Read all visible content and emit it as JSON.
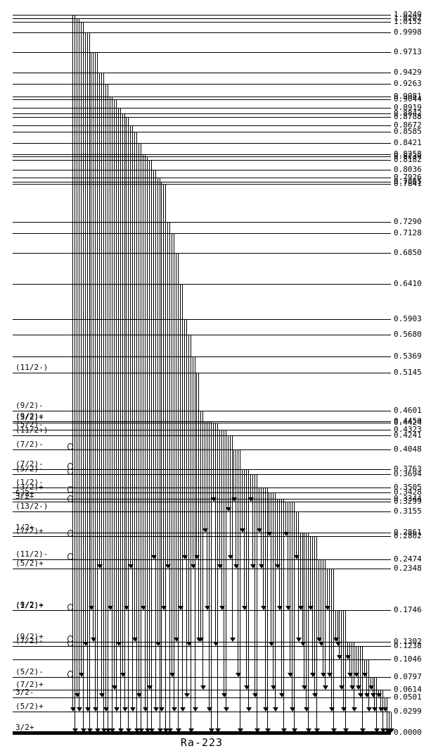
{
  "nuclide": "Ra-223",
  "energy_unit": "MeV",
  "colors": {
    "line": "#000000",
    "background": "#ffffff"
  },
  "levels": [
    {
      "e": 0.0,
      "el": "0.0000",
      "spin": "3/2+",
      "ground": true
    },
    {
      "e": 0.0299,
      "el": "0.0299",
      "spin": "(5/2)+"
    },
    {
      "e": 0.0501,
      "el": "0.0501",
      "spin": "3/2-"
    },
    {
      "e": 0.0614,
      "el": "0.0614",
      "spin": "(7/2)+"
    },
    {
      "e": 0.0797,
      "el": "0.0797",
      "spin": "(5/2)-",
      "m": true
    },
    {
      "e": 0.1046,
      "el": "0.1046",
      "spin": ""
    },
    {
      "e": 0.1238,
      "el": "0.1238",
      "spin": "(7/2)-",
      "m": true
    },
    {
      "e": 0.1302,
      "el": "0.1302",
      "spin": "(9/2)+",
      "m": true
    },
    {
      "e": 0.1746,
      "el": "0.1746",
      "spin": "(9/2)+",
      "spin2": "(1/2)+",
      "m": true
    },
    {
      "e": 0.2348,
      "el": "0.2348",
      "spin": "(5/2)+"
    },
    {
      "e": 0.2474,
      "el": "0.2474",
      "spin": "(11/2)-",
      "m": true
    },
    {
      "e": 0.2802,
      "el": "0.2802",
      "spin": "(7/2)+",
      "m": true
    },
    {
      "e": 0.2861,
      "el": "0.2861",
      "spin": "1/2+"
    },
    {
      "e": 0.3155,
      "el": "0.3155",
      "spin": "(13/2-)"
    },
    {
      "e": 0.3299,
      "el": "0.3299",
      "spin": "3/2+",
      "m": true
    },
    {
      "e": 0.3344,
      "el": "0.3344",
      "spin": "5/2+"
    },
    {
      "e": 0.3428,
      "el": "0.3428",
      "spin": "(3/2)+",
      "m": true
    },
    {
      "e": 0.3505,
      "el": "0.3505",
      "spin": "(1/2)-"
    },
    {
      "e": 0.3694,
      "el": "0.3694",
      "spin": "(5/2)-",
      "m": true
    },
    {
      "e": 0.3763,
      "el": "0.3763",
      "spin": "(7/2)-",
      "m": true
    },
    {
      "e": 0.4048,
      "el": "0.4048",
      "spin": "(7/2)-",
      "m": true
    },
    {
      "e": 0.4241,
      "el": "0.4241",
      "spin": "(11/2+)"
    },
    {
      "e": 0.4323,
      "el": "0.4323",
      "spin": "(5/2)-"
    },
    {
      "e": 0.4424,
      "el": "0.4424",
      "spin": "(5/2)+"
    },
    {
      "e": 0.445,
      "el": "0.4450",
      "spin": "(9/2)+"
    },
    {
      "e": 0.4601,
      "el": "0.4601",
      "spin": "(9/2)-"
    },
    {
      "e": 0.5145,
      "el": "0.5145",
      "spin": "(11/2-)"
    },
    {
      "e": 0.5369,
      "el": "0.5369",
      "spin": ""
    },
    {
      "e": 0.568,
      "el": "0.5680",
      "spin": ""
    },
    {
      "e": 0.5903,
      "el": "0.5903",
      "spin": ""
    },
    {
      "e": 0.641,
      "el": "0.6410",
      "spin": ""
    },
    {
      "e": 0.685,
      "el": "0.6850",
      "spin": ""
    },
    {
      "e": 0.7128,
      "el": "0.7128",
      "spin": ""
    },
    {
      "e": 0.729,
      "el": "0.7290",
      "spin": ""
    },
    {
      "e": 0.7841,
      "el": "0.7841",
      "spin": ""
    },
    {
      "e": 0.7865,
      "el": "0.7865",
      "spin": ""
    },
    {
      "e": 0.7926,
      "el": "0.7926",
      "spin": ""
    },
    {
      "e": 0.8036,
      "el": "0.8036",
      "spin": ""
    },
    {
      "e": 0.8182,
      "el": "0.8182",
      "spin": ""
    },
    {
      "e": 0.823,
      "el": "0.8230",
      "spin": ""
    },
    {
      "e": 0.8258,
      "el": "0.8258",
      "spin": ""
    },
    {
      "e": 0.8421,
      "el": "0.8421",
      "spin": ""
    },
    {
      "e": 0.8585,
      "el": "0.8585",
      "spin": ""
    },
    {
      "e": 0.8672,
      "el": "0.8672",
      "spin": ""
    },
    {
      "e": 0.8788,
      "el": "0.8788",
      "spin": ""
    },
    {
      "e": 0.8842,
      "el": "0.8842",
      "spin": ""
    },
    {
      "e": 0.8919,
      "el": "0.8919",
      "spin": ""
    },
    {
      "e": 0.9044,
      "el": "0.9044",
      "spin": ""
    },
    {
      "e": 0.9081,
      "el": "0.9081",
      "spin": ""
    },
    {
      "e": 0.9263,
      "el": "0.9263",
      "spin": ""
    },
    {
      "e": 0.9429,
      "el": "0.9429",
      "spin": ""
    },
    {
      "e": 0.9713,
      "el": "0.9713",
      "spin": ""
    },
    {
      "e": 0.9998,
      "el": "0.9998",
      "spin": ""
    },
    {
      "e": 1.0152,
      "el": "1.0152",
      "spin": ""
    },
    {
      "e": 1.0202,
      "el": "1.0202",
      "spin": ""
    },
    {
      "e": 1.0249,
      "el": "1.0249",
      "spin": ""
    }
  ],
  "transitions": [
    {
      "from": 1.0249,
      "to": [
        0.0299,
        0.0
      ]
    },
    {
      "from": 1.0202,
      "to": [
        0.0501,
        0.0299
      ]
    },
    {
      "from": 1.0152,
      "to": [
        0.0797,
        0.0
      ]
    },
    {
      "from": 0.9998,
      "to": [
        0.1238,
        0.0299,
        0.0
      ]
    },
    {
      "from": 0.9713,
      "to": [
        0.1746,
        0.1302,
        0.0299,
        0.0
      ]
    },
    {
      "from": 0.9429,
      "to": [
        0.2348,
        0.0501,
        0.0
      ]
    },
    {
      "from": 0.9263,
      "to": [
        0.0299,
        0.0
      ]
    },
    {
      "from": 0.9081,
      "to": [
        0.1746,
        0.0
      ]
    },
    {
      "from": 0.9044,
      "to": [
        0.0614,
        0.0299
      ]
    },
    {
      "from": 0.8919,
      "to": [
        0.1238,
        0.0
      ]
    },
    {
      "from": 0.8842,
      "to": [
        0.0797,
        0.0299
      ]
    },
    {
      "from": 0.8788,
      "to": [
        0.1746,
        0.0
      ]
    },
    {
      "from": 0.8672,
      "to": [
        0.2348,
        0.0299
      ]
    },
    {
      "from": 0.8585,
      "to": [
        0.1302,
        0.0
      ]
    },
    {
      "from": 0.8421,
      "to": [
        0.0501,
        0.0
      ]
    },
    {
      "from": 0.8258,
      "to": [
        0.1746,
        0.0299
      ]
    },
    {
      "from": 0.823,
      "to": [
        0.0
      ]
    },
    {
      "from": 0.8182,
      "to": [
        0.0614,
        0.0
      ]
    },
    {
      "from": 0.8036,
      "to": [
        0.2474,
        0.0299
      ]
    },
    {
      "from": 0.7926,
      "to": [
        0.1238,
        0.0
      ]
    },
    {
      "from": 0.7865,
      "to": [
        0.0299
      ]
    },
    {
      "from": 0.7841,
      "to": [
        0.1746,
        0.0
      ]
    },
    {
      "from": 0.729,
      "to": [
        0.2348,
        0.0
      ]
    },
    {
      "from": 0.7128,
      "to": [
        0.0797,
        0.0299
      ]
    },
    {
      "from": 0.685,
      "to": [
        0.1302,
        0.0
      ]
    },
    {
      "from": 0.641,
      "to": [
        0.1746,
        0.0299
      ]
    },
    {
      "from": 0.5903,
      "to": [
        0.2474,
        0.0501
      ]
    },
    {
      "from": 0.568,
      "to": [
        0.1238,
        0.0
      ]
    },
    {
      "from": 0.5369,
      "to": [
        0.2348,
        0.0299
      ]
    },
    {
      "from": 0.5145,
      "to": [
        0.2474,
        0.1302
      ]
    },
    {
      "from": 0.4601,
      "to": [
        0.1302,
        0.0614
      ]
    },
    {
      "from": 0.445,
      "to": [
        0.2861,
        0.1746,
        0.0299,
        0.0
      ]
    },
    {
      "from": 0.4424,
      "to": [
        0.3299,
        0.1238,
        0.0
      ]
    },
    {
      "from": 0.4323,
      "to": [
        0.2348,
        0.1746,
        0.0501,
        0.0299
      ]
    },
    {
      "from": 0.4241,
      "to": [
        0.3155,
        0.2474,
        0.1302
      ]
    },
    {
      "from": 0.4048,
      "to": [
        0.3299,
        0.2348,
        0.0797,
        0.0
      ]
    },
    {
      "from": 0.3763,
      "to": [
        0.2861,
        0.1746,
        0.0614,
        0.0299
      ]
    },
    {
      "from": 0.3694,
      "to": [
        0.3299,
        0.2348,
        0.0501,
        0.0
      ]
    },
    {
      "from": 0.3505,
      "to": [
        0.2861,
        0.2348,
        0.1746,
        0.0299,
        0.0
      ]
    },
    {
      "from": 0.3428,
      "to": [
        0.2802,
        0.1238,
        0.0614,
        0.0299
      ]
    },
    {
      "from": 0.3344,
      "to": [
        0.2348,
        0.1746,
        0.0501,
        0.0
      ]
    },
    {
      "from": 0.3299,
      "to": [
        0.2802,
        0.1746,
        0.0797,
        0.0299,
        0.0
      ]
    },
    {
      "from": 0.3155,
      "to": [
        0.2474,
        0.1302
      ]
    },
    {
      "from": 0.2861,
      "to": [
        0.1746,
        0.1238,
        0.0614,
        0.0299,
        0.0
      ]
    },
    {
      "from": 0.2802,
      "to": [
        0.1746,
        0.0797,
        0.0501,
        0.0
      ]
    },
    {
      "from": 0.2474,
      "to": [
        0.1302,
        0.1238,
        0.0797,
        0.0614
      ]
    },
    {
      "from": 0.2348,
      "to": [
        0.1746,
        0.0797,
        0.0299,
        0.0
      ]
    },
    {
      "from": 0.1746,
      "to": [
        0.1302,
        0.1238,
        0.1046,
        0.0614,
        0.0299,
        0.0
      ]
    },
    {
      "from": 0.1302,
      "to": [
        0.1046,
        0.0797,
        0.0614,
        0.0299
      ]
    },
    {
      "from": 0.1238,
      "to": [
        0.0797,
        0.0614,
        0.0501,
        0.0
      ]
    },
    {
      "from": 0.1046,
      "to": [
        0.0797,
        0.0501,
        0.0299
      ]
    },
    {
      "from": 0.0797,
      "to": [
        0.0614,
        0.0501,
        0.0299,
        0.0
      ]
    },
    {
      "from": 0.0614,
      "to": [
        0.0501,
        0.0299,
        0.0
      ]
    },
    {
      "from": 0.0501,
      "to": [
        0.0299,
        0.0
      ]
    },
    {
      "from": 0.0299,
      "to": [
        0.0,
        0.0
      ]
    }
  ]
}
